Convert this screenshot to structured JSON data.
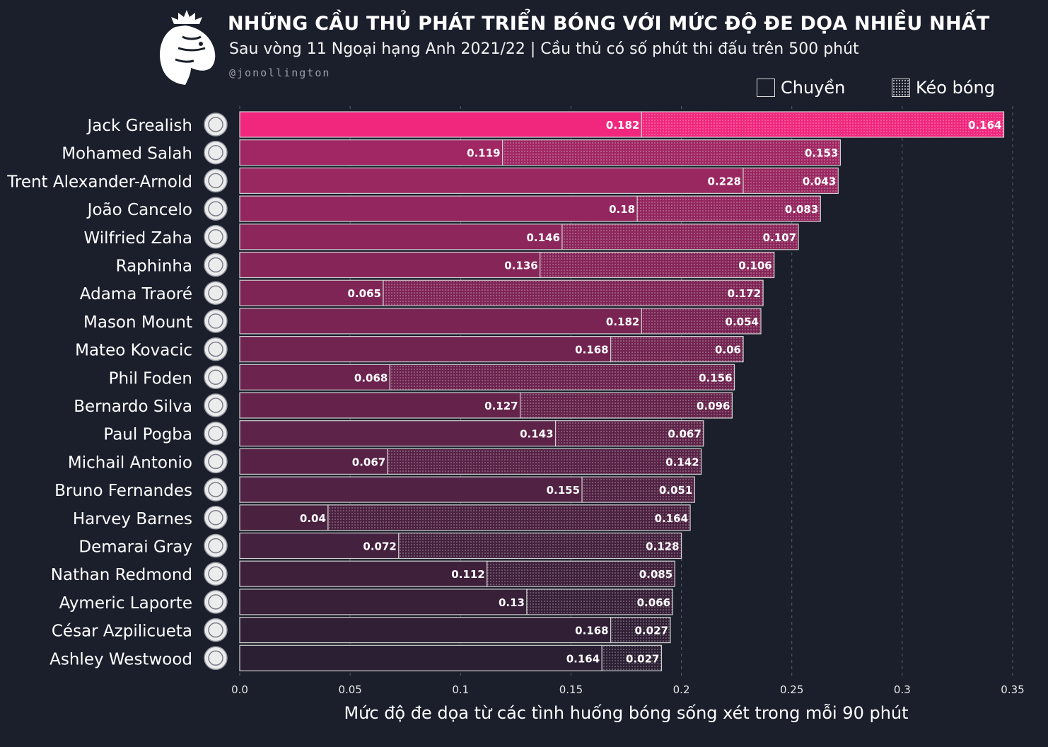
{
  "header": {
    "title": "NHỮNG CẦU THỦ PHÁT TRIỂN BÓNG VỚI MỨC ĐỘ ĐE DỌA NHIỀU NHẤT",
    "subtitle": "Sau vòng 11 Ngoại hạng Anh 2021/22 | Cầu thủ có số phút thi đấu trên 500 phút",
    "credit": "@jonollington"
  },
  "legend": {
    "pass_label": "Chuyền",
    "carry_label": "Kéo bóng"
  },
  "colors": {
    "background": "#1b1f2c",
    "top_bar": "#f0277d",
    "bar_strong": "#a02763",
    "bar_weak": "#2a1f33",
    "outline": "#d0d0d0"
  },
  "chart_data": {
    "type": "bar",
    "orientation": "horizontal",
    "stacked": true,
    "xlabel": "Mức độ đe dọa từ các tình huống bóng sống xét trong mỗi 90 phút",
    "xlim": [
      0,
      0.35
    ],
    "xticks": [
      "0.0",
      "0.05",
      "0.1",
      "0.15",
      "0.2",
      "0.25",
      "0.3",
      "0.35"
    ],
    "grid": "vertical-dashed",
    "legend_position": "top-right",
    "categories": [
      "Jack Grealish",
      "Mohamed Salah",
      "Trent Alexander-Arnold",
      "João Cancelo",
      "Wilfried Zaha",
      "Raphinha",
      "Adama Traoré",
      "Mason Mount",
      "Mateo Kovacic",
      "Phil Foden",
      "Bernardo Silva",
      "Paul Pogba",
      "Michail Antonio",
      "Bruno Fernandes",
      "Harvey Barnes",
      "Demarai Gray",
      "Nathan Redmond",
      "Aymeric Laporte",
      "César Azpilicueta",
      "Ashley Westwood"
    ],
    "clubs": [
      "man-city",
      "liverpool",
      "liverpool",
      "man-city",
      "crystal-palace",
      "leeds",
      "wolves",
      "chelsea",
      "chelsea",
      "man-city",
      "man-city",
      "man-utd",
      "west-ham",
      "man-utd",
      "leicester",
      "everton",
      "southampton",
      "man-city",
      "chelsea",
      "aston-villa"
    ],
    "series": [
      {
        "name": "Chuyền",
        "pattern": "solid",
        "values": [
          0.182,
          0.119,
          0.228,
          0.18,
          0.146,
          0.136,
          0.065,
          0.182,
          0.168,
          0.068,
          0.127,
          0.143,
          0.067,
          0.155,
          0.04,
          0.072,
          0.112,
          0.13,
          0.168,
          0.164
        ]
      },
      {
        "name": "Kéo bóng",
        "pattern": "dotted",
        "values": [
          0.164,
          0.153,
          0.043,
          0.083,
          0.107,
          0.106,
          0.172,
          0.054,
          0.06,
          0.156,
          0.096,
          0.067,
          0.142,
          0.051,
          0.164,
          0.128,
          0.085,
          0.066,
          0.027,
          0.027
        ]
      }
    ]
  }
}
